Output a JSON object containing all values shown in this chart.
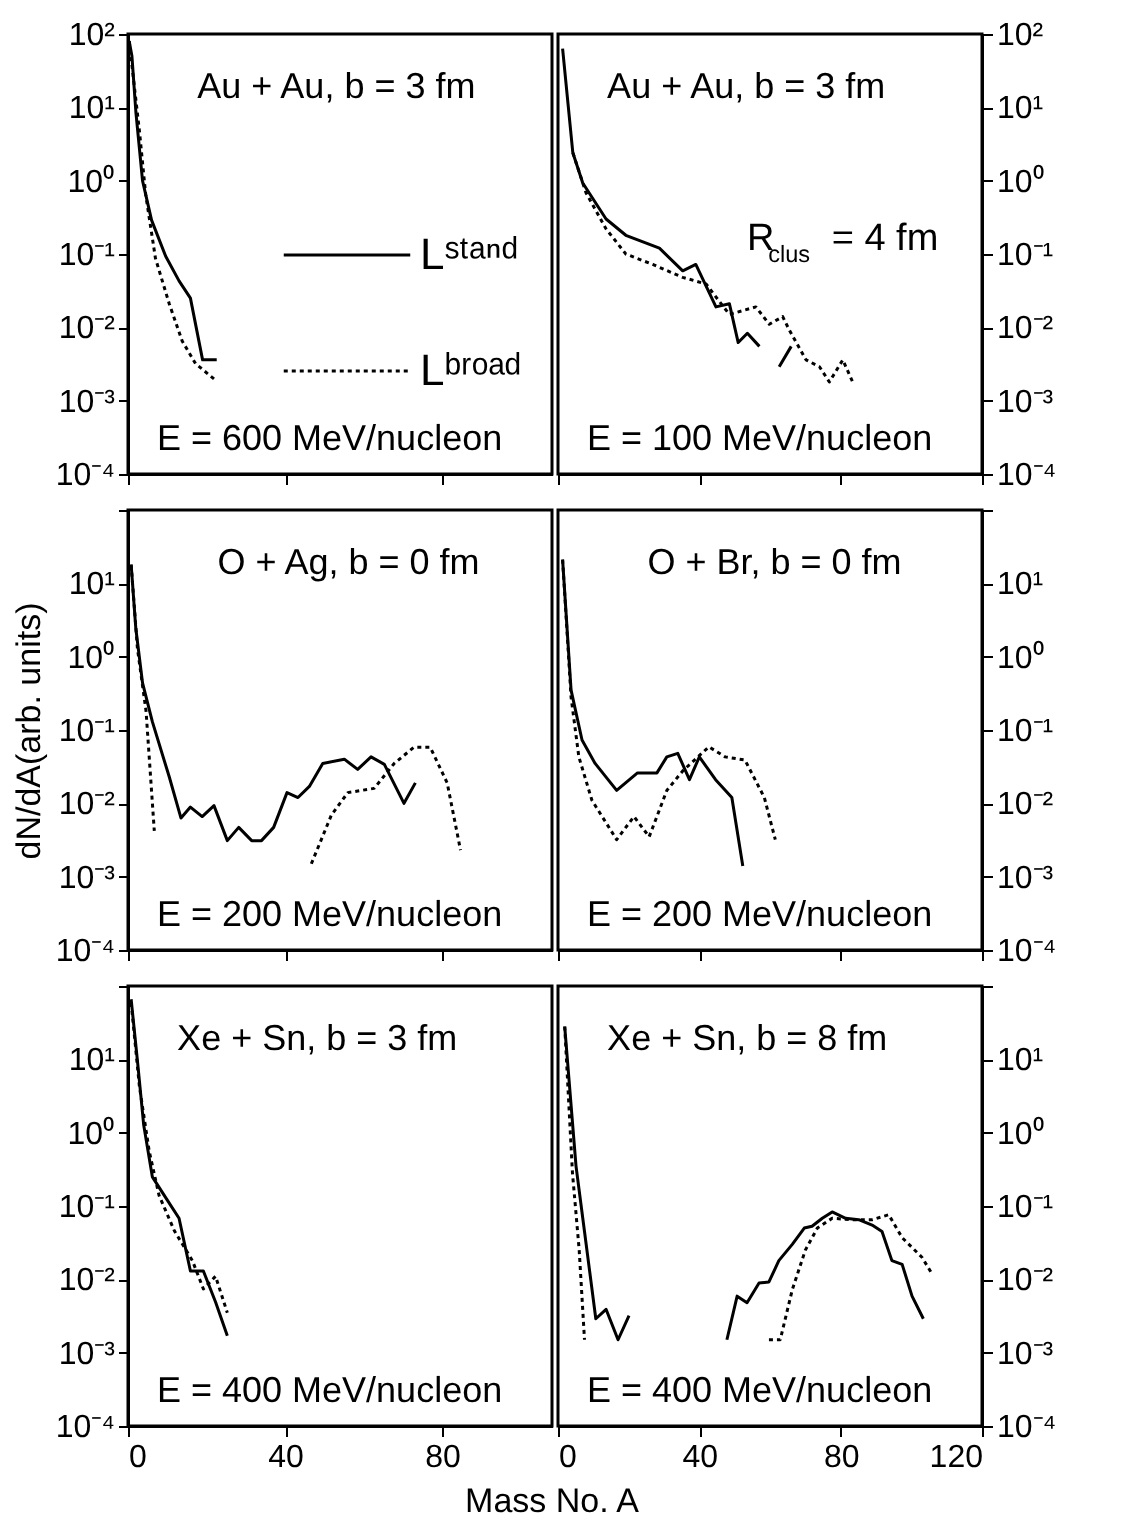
{
  "chart_data": [
    {
      "type": "line",
      "title": "Au + Au, b = 3 fm",
      "annotations": [
        "E = 600 MeV/nucleon"
      ],
      "xlim": [
        0,
        108
      ],
      "xticks": [
        0,
        40,
        80
      ],
      "ylim": [
        0.0001,
        100
      ],
      "log": "y",
      "tick_labels": "y",
      "legend": "right",
      "yticks": [
        {
          "value": 100,
          "label": "10²"
        },
        {
          "value": 10,
          "label": "10¹"
        },
        {
          "value": 1,
          "label": "10⁰"
        },
        {
          "value": 0.1,
          "label": "10⁻¹"
        },
        {
          "value": 0.01,
          "label": "10⁻²"
        },
        {
          "value": 0.001,
          "label": "10⁻³"
        },
        {
          "value": 0.0001,
          "label": "10⁻⁴"
        }
      ],
      "series": [
        {
          "name": "Lˢᵗᵃⁿᵈ",
          "color": "#000000",
          "line_style": "solid",
          "x": [
            0.3,
            1,
            2,
            3.7,
            6,
            9.6,
            13,
            15.9,
            19,
            22.6
          ],
          "values": [
            80,
            50,
            8.7,
            1,
            0.29,
            0.093,
            0.043,
            0.025,
            0.0036,
            0.0036
          ]
        },
        {
          "name": "Lᵇʳᵒᵃᵈ",
          "color": "#000000",
          "line_style": "dotted",
          "x": [
            0.3,
            2.9,
            4.5,
            7,
            10.5,
            13.8,
            17.2,
            22.3
          ],
          "values": [
            80,
            4.8,
            0.65,
            0.087,
            0.021,
            0.0065,
            0.0032,
            0.0019
          ]
        }
      ]
    },
    {
      "type": "line",
      "title": "Au + Au,  b = 3 fm",
      "annotations": [
        "E = 100 MeV/nucleon",
        "R$_{clus}$ = 4 fm"
      ],
      "xlim": [
        0,
        120
      ],
      "xticks": [
        0,
        40,
        80,
        120
      ],
      "ylim": [
        0.0001,
        100
      ],
      "log": "y",
      "tick_labels": "y",
      "yticks": [
        {
          "value": 100,
          "label": "10²"
        },
        {
          "value": 10,
          "label": "10¹"
        },
        {
          "value": 1,
          "label": "10⁰"
        },
        {
          "value": 0.1,
          "label": "10⁻¹"
        },
        {
          "value": 0.01,
          "label": "10⁻²"
        },
        {
          "value": 0.001,
          "label": "10⁻³"
        },
        {
          "value": 0.0001,
          "label": "10⁻⁴"
        }
      ],
      "series": [
        {
          "color": "#000000",
          "line_style": "solid",
          "x": [
            1.3,
            4.2,
            7,
            13.6,
            19.2,
            28.7,
            35.3,
            39,
            44.7,
            48.5,
            51,
            53.6,
            57,
            null,
            62.6,
            66
          ],
          "values": [
            63,
            2.4,
            0.93,
            0.3,
            0.18,
            0.12,
            0.059,
            0.072,
            0.019,
            0.021,
            0.0062,
            0.0083,
            0.0055,
            null,
            0.0029,
            0.0055
          ]
        },
        {
          "color": "#000000",
          "line_style": "dotted",
          "x": [
            4.2,
            7.9,
            13.6,
            19.2,
            26.8,
            35.3,
            41.9,
            48.5,
            56,
            59.8,
            63.6,
            65.5,
            70.2,
            74,
            76.8,
            80.6,
            83.4
          ],
          "values": [
            2.4,
            0.69,
            0.22,
            0.1,
            0.072,
            0.048,
            0.039,
            0.015,
            0.019,
            0.011,
            0.014,
            0.0091,
            0.0036,
            0.0029,
            0.0018,
            0.0036,
            0.0018
          ]
        }
      ]
    },
    {
      "type": "line",
      "title": "O + Ag, b = 0 fm",
      "annotations": [
        "E = 200 MeV/nucleon"
      ],
      "ylabel": "dN/dA(arb. units)",
      "xlim": [
        0,
        108
      ],
      "xticks": [
        0,
        40,
        80
      ],
      "ylim": [
        0.0001,
        100
      ],
      "log": "y",
      "tick_labels": "y",
      "yticks": [
        {
          "value": 100,
          "label": null
        },
        {
          "value": 10,
          "label": "10¹"
        },
        {
          "value": 1,
          "label": "10⁰"
        },
        {
          "value": 0.1,
          "label": "10⁻¹"
        },
        {
          "value": 0.01,
          "label": "10⁻²"
        },
        {
          "value": 0.001,
          "label": "10⁻³"
        },
        {
          "value": 0.0001,
          "label": "10⁻⁴"
        }
      ],
      "series": [
        {
          "color": "#000000",
          "line_style": "solid",
          "x": [
            0.8,
            2,
            3.7,
            6.2,
            10.5,
            13.5,
            15.9,
            18.9,
            21.9,
            25.3,
            28.2,
            31.5,
            34,
            37.1,
            40.5,
            43.3,
            46.2,
            49.6,
            55.1,
            58.5,
            61.9,
            65.3,
            70.3,
            73.2
          ],
          "values": [
            18,
            2.4,
            0.44,
            0.13,
            0.023,
            0.0063,
            0.0089,
            0.0066,
            0.0093,
            0.0031,
            0.0047,
            0.0031,
            0.0031,
            0.0047,
            0.014,
            0.012,
            0.017,
            0.035,
            0.04,
            0.029,
            0.043,
            0.034,
            0.01,
            0.019
          ]
        },
        {
          "color": "#000000",
          "line_style": "dotted",
          "x": [
            0.8,
            2.4,
            4.6,
            6.7,
            null,
            46.7,
            51.8,
            56,
            62.7,
            67.8,
            72.8,
            77,
            81.3,
            84.7
          ],
          "values": [
            18,
            1.3,
            0.18,
            0.0042,
            null,
            0.0015,
            0.0069,
            0.014,
            0.016,
            0.035,
            0.058,
            0.058,
            0.019,
            0.0023
          ]
        }
      ]
    },
    {
      "type": "line",
      "title": "O + Br, b = 0 fm",
      "annotations": [
        "E = 200 MeV/nucleon"
      ],
      "xlim": [
        0,
        120
      ],
      "xticks": [
        0,
        40,
        80,
        120
      ],
      "ylim": [
        0.0001,
        100
      ],
      "log": "y",
      "tick_labels": "y",
      "yticks": [
        {
          "value": 100,
          "label": null
        },
        {
          "value": 10,
          "label": "10¹"
        },
        {
          "value": 1,
          "label": "10⁰"
        },
        {
          "value": 0.1,
          "label": "10⁻¹"
        },
        {
          "value": 0.01,
          "label": "10⁻²"
        },
        {
          "value": 0.001,
          "label": "10⁻³"
        },
        {
          "value": 0.0001,
          "label": "10⁻⁴"
        }
      ],
      "series": [
        {
          "color": "#000000",
          "line_style": "solid",
          "x": [
            1.3,
            3.7,
            6.8,
            10.5,
            16.6,
            22.5,
            28,
            30.8,
            33.9,
            37.2,
            40,
            44.6,
            49.2,
            52.3
          ],
          "values": [
            21,
            0.35,
            0.073,
            0.035,
            0.015,
            0.026,
            0.026,
            0.043,
            0.048,
            0.021,
            0.043,
            0.021,
            0.012,
            0.0014
          ]
        },
        {
          "color": "#000000",
          "line_style": "dotted",
          "x": [
            1.3,
            3.7,
            5.9,
            9.6,
            16.6,
            21.5,
            25.8,
            30.8,
            35.4,
            42.7,
            47.3,
            52.9,
            58.4,
            61.5
          ],
          "values": [
            21,
            0.28,
            0.043,
            0.011,
            0.0032,
            0.0066,
            0.0035,
            0.015,
            0.028,
            0.059,
            0.043,
            0.039,
            0.012,
            0.0032
          ]
        }
      ]
    },
    {
      "type": "line",
      "title": "Xe + Sn,  b = 3 fm",
      "annotations": [
        "E = 400 MeV/nucleon"
      ],
      "xlabel": "Mass No. A",
      "xlim": [
        0,
        108
      ],
      "xticks": [
        0,
        40,
        80
      ],
      "ylim": [
        0.0001,
        100
      ],
      "log": "y",
      "yticks": [
        {
          "value": 100,
          "label": null
        },
        {
          "value": 10,
          "label": "10¹"
        },
        {
          "value": 1,
          "label": "10⁰"
        },
        {
          "value": 0.1,
          "label": "10⁻¹"
        },
        {
          "value": 0.01,
          "label": "10⁻²"
        },
        {
          "value": 0.001,
          "label": "10⁻³"
        },
        {
          "value": 0.0001,
          "label": "10⁻⁴"
        }
      ],
      "series": [
        {
          "color": "#000000",
          "line_style": "solid",
          "x": [
            0.8,
            2.4,
            4,
            6.2,
            9.6,
            13,
            15.9,
            19.2,
            22.3,
            25.3
          ],
          "values": [
            66,
            9.6,
            1.27,
            0.25,
            0.13,
            0.068,
            0.013,
            0.013,
            0.0049,
            0.0017
          ]
        },
        {
          "color": "#000000",
          "line_style": "dotted",
          "x": [
            0.8,
            2.9,
            5.4,
            7.9,
            11.8,
            16.4,
            19.2,
            22.3,
            25.3
          ],
          "values": [
            59,
            4.3,
            0.56,
            0.14,
            0.046,
            0.018,
            0.0074,
            0.011,
            0.0035
          ]
        }
      ]
    },
    {
      "type": "line",
      "title": "Xe + Sn,  b = 8 fm",
      "annotations": [
        "E = 400 MeV/nucleon"
      ],
      "xlim": [
        0,
        120
      ],
      "xticks": [
        0,
        40,
        80,
        120
      ],
      "ylim": [
        0.0001,
        100
      ],
      "log": "y",
      "yticks": [
        {
          "value": 100,
          "label": null
        },
        {
          "value": 10,
          "label": "10¹"
        },
        {
          "value": 1,
          "label": "10⁰"
        },
        {
          "value": 0.1,
          "label": "10⁻¹"
        },
        {
          "value": 0.01,
          "label": "10⁻²"
        },
        {
          "value": 0.001,
          "label": "10⁻³"
        },
        {
          "value": 0.0001,
          "label": "10⁻⁴"
        }
      ],
      "series": [
        {
          "color": "#000000",
          "line_style": "solid",
          "x": [
            1.9,
            5.1,
            7.5,
            10.7,
            13.6,
            17,
            20.1,
            null,
            47.8,
            50.7,
            53.5,
            56.9,
            59.7,
            62.5,
            66.3,
            69.7,
            71.9,
            74.8,
            77.6,
            81.4,
            85.1,
            88.9,
            91.7,
            94.5,
            97.4,
            100.2,
            103.4
          ],
          "values": [
            28,
            0.35,
            0.045,
            0.0029,
            0.0039,
            0.0015,
            0.0032,
            null,
            0.0015,
            0.0059,
            0.0048,
            0.0089,
            0.0092,
            0.018,
            0.03,
            0.05,
            0.053,
            0.068,
            0.083,
            0.068,
            0.065,
            0.055,
            0.045,
            0.018,
            0.016,
            0.0059,
            0.0029
          ]
        },
        {
          "color": "#000000",
          "line_style": "dotted",
          "x": [
            1.9,
            4.1,
            6,
            7.5,
            null,
            59.7,
            62.9,
            66.3,
            70,
            73.4,
            77.6,
            83.3,
            88.9,
            93.6,
            97.4,
            103,
            105.8
          ],
          "values": [
            28,
            0.28,
            0.025,
            0.0015,
            null,
            0.0015,
            0.0015,
            0.0072,
            0.025,
            0.05,
            0.068,
            0.065,
            0.065,
            0.076,
            0.037,
            0.02,
            0.012
          ]
        }
      ]
    }
  ]
}
